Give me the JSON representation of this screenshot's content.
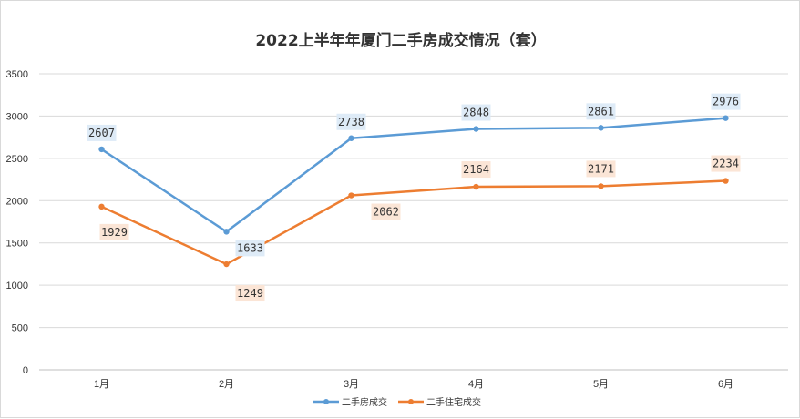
{
  "chart_data": {
    "type": "line",
    "title": "2022上半年年厦门二手房成交情况（套）",
    "categories": [
      "1月",
      "2月",
      "3月",
      "4月",
      "5月",
      "6月"
    ],
    "ylim": [
      0,
      3500
    ],
    "yticks": [
      0,
      500,
      1000,
      1500,
      2000,
      2500,
      3000,
      3500
    ],
    "grid": true,
    "legend_position": "bottom",
    "series": [
      {
        "name": "二手房成交",
        "color": "#5b9bd5",
        "label_bg": "#deebf7",
        "values": [
          2607,
          1633,
          2738,
          2848,
          2861,
          2976
        ]
      },
      {
        "name": "二手住宅成交",
        "color": "#ed7d31",
        "label_bg": "#fbe5d6",
        "values": [
          1929,
          1249,
          2062,
          2164,
          2171,
          2234
        ]
      }
    ]
  }
}
